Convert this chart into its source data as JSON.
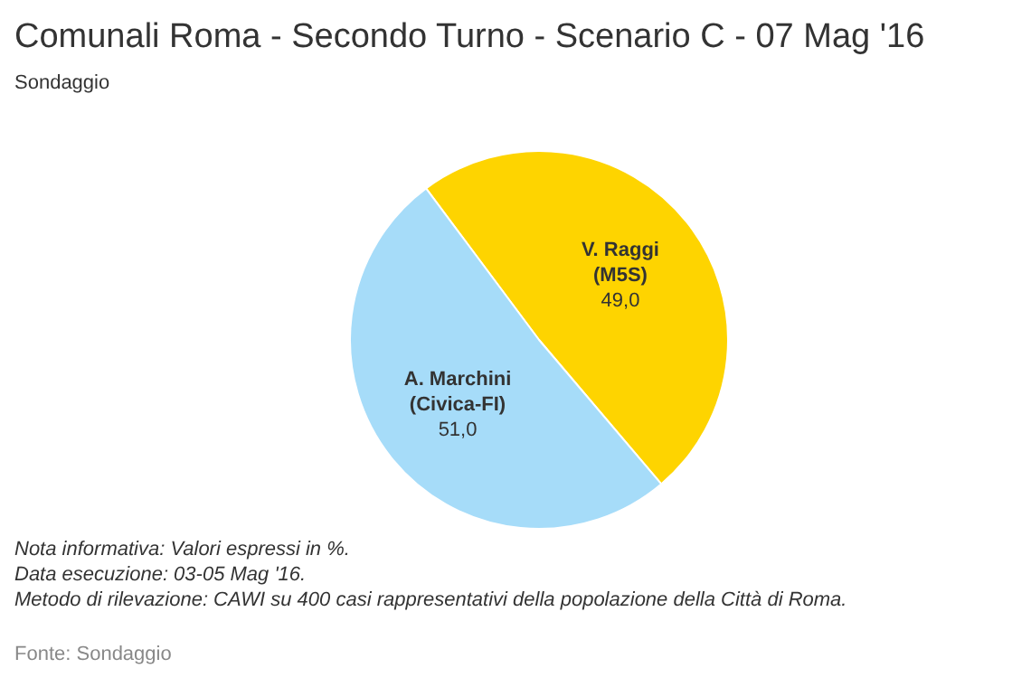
{
  "chart_data": {
    "type": "pie",
    "title": "Comunali Roma - Secondo Turno - Scenario C - 07 Mag '16",
    "subtitle": "Sondaggio",
    "categories": [
      "V. Raggi (M5S)",
      "A. Marchini (Civica-FI)"
    ],
    "values": [
      49.0,
      51.0
    ],
    "colors": [
      "#fed400",
      "#a6dcf9"
    ],
    "value_labels": [
      "49,0",
      "51,0"
    ],
    "legend": false,
    "annotations": [
      "Nota informativa: Valori espressi in %.",
      "Data esecuzione: 03-05 Mag '16.",
      "Metodo di rilevazione: CAWI su 400 casi rappresentativi della popolazione della Città di Roma.",
      "Fonte: Sondaggio"
    ]
  }
}
